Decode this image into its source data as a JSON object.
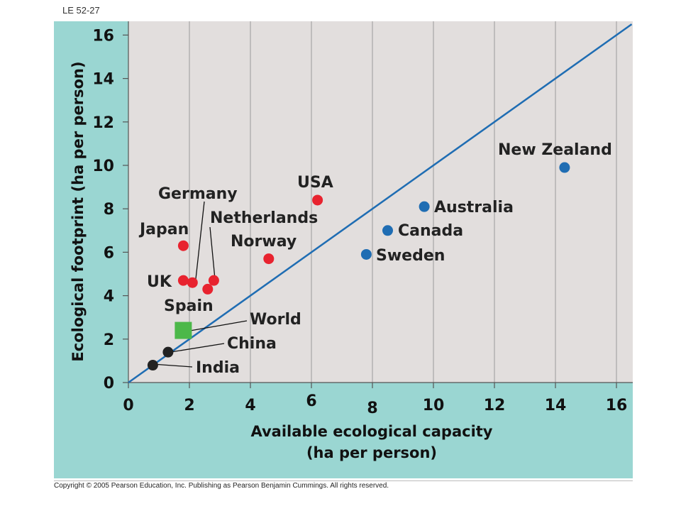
{
  "slide_label": "LE 52-27",
  "copyright": "Copyright © 2005 Pearson Education, Inc. Publishing as Pearson Benjamin Cummings. All rights reserved.",
  "colors": {
    "panel": "#9ad6d2",
    "plot_bg": "#e2dedd",
    "line": "#1f6db3",
    "red": "#e8232f",
    "blue": "#1f6db3",
    "green": "#4cb849",
    "black": "#222222"
  },
  "chart_data": {
    "type": "scatter",
    "xlabel": [
      "Available ecological capacity",
      "(ha per person)"
    ],
    "ylabel": "Ecological footprint (ha per person)",
    "xlim": [
      0,
      16.5
    ],
    "ylim": [
      0,
      16.4
    ],
    "xticks": [
      "0",
      "2",
      "4",
      "6",
      "8",
      "10",
      "12",
      "14",
      "16"
    ],
    "yticks": [
      "0",
      "2",
      "4",
      "6",
      "8",
      "10",
      "12",
      "14",
      "16"
    ],
    "reference_line": {
      "from": [
        0,
        0
      ],
      "to": [
        16.5,
        16.5
      ]
    },
    "points": [
      {
        "name": "New Zealand",
        "x": 14.3,
        "y": 9.9,
        "group": "blue"
      },
      {
        "name": "Australia",
        "x": 9.7,
        "y": 8.1,
        "group": "blue"
      },
      {
        "name": "Canada",
        "x": 8.5,
        "y": 7.0,
        "group": "blue"
      },
      {
        "name": "Sweden",
        "x": 7.8,
        "y": 5.9,
        "group": "blue"
      },
      {
        "name": "USA",
        "x": 6.2,
        "y": 8.4,
        "group": "red"
      },
      {
        "name": "Norway",
        "x": 4.6,
        "y": 5.7,
        "group": "red"
      },
      {
        "name": "Japan",
        "x": 1.8,
        "y": 6.3,
        "group": "red"
      },
      {
        "name": "Germany",
        "x": 2.1,
        "y": 4.6,
        "group": "red"
      },
      {
        "name": "Netherlands",
        "x": 2.8,
        "y": 4.7,
        "group": "red"
      },
      {
        "name": "UK",
        "x": 1.8,
        "y": 4.7,
        "group": "red"
      },
      {
        "name": "Spain",
        "x": 2.6,
        "y": 4.3,
        "group": "red"
      },
      {
        "name": "World",
        "x": 1.8,
        "y": 2.4,
        "group": "green"
      },
      {
        "name": "China",
        "x": 1.3,
        "y": 1.4,
        "group": "black"
      },
      {
        "name": "India",
        "x": 0.8,
        "y": 0.8,
        "group": "black"
      }
    ]
  }
}
